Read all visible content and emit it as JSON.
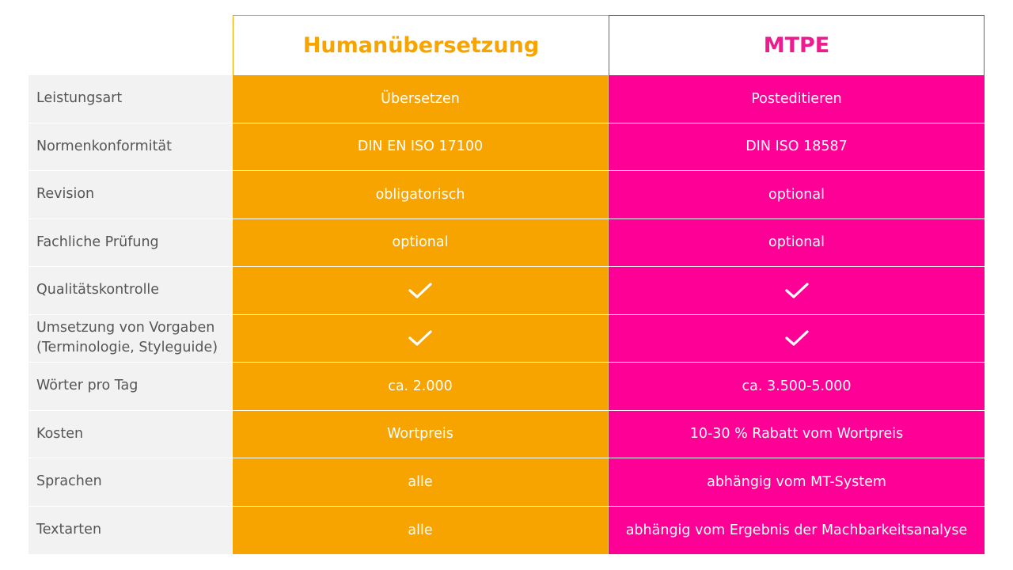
{
  "headers": {
    "human": "Humanübersetzung",
    "mtpe": "MTPE"
  },
  "colors": {
    "human": "#f7a300",
    "mtpe": "#ff0096",
    "label_bg": "#f2f2f2",
    "label_text": "#555555"
  },
  "rows": [
    {
      "label": "Leistungsart",
      "human": "Übersetzen",
      "mtpe": "Posteditieren"
    },
    {
      "label": "Normenkonformität",
      "human": "DIN EN ISO 17100",
      "mtpe": "DIN ISO 18587"
    },
    {
      "label": "Revision",
      "human": "obligatorisch",
      "mtpe": "optional"
    },
    {
      "label": "Fachliche Prüfung",
      "human": "optional",
      "mtpe": "optional"
    },
    {
      "label": "Qualitätskontrolle",
      "human": "check-icon",
      "mtpe": "check-icon"
    },
    {
      "label": "Umsetzung von Vorgaben\n(Terminologie, Styleguide)",
      "human": "check-icon",
      "mtpe": "check-icon"
    },
    {
      "label": "Wörter pro Tag",
      "human": "ca. 2.000",
      "mtpe": "ca. 3.500-5.000"
    },
    {
      "label": "Kosten",
      "human": "Wortpreis",
      "mtpe": "10-30 % Rabatt vom Wortpreis"
    },
    {
      "label": "Sprachen",
      "human": "alle",
      "mtpe": "abhängig vom MT-System"
    },
    {
      "label": "Textarten",
      "human": "alle",
      "mtpe": "abhängig vom Ergebnis der Machbarkeitsanalyse"
    }
  ]
}
